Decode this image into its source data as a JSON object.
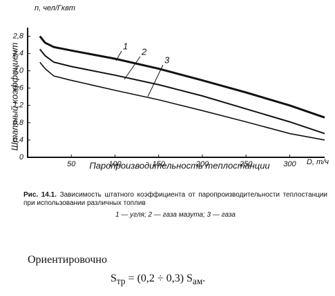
{
  "chart_data": {
    "type": "line",
    "y_label": "Штатный коэффициент",
    "y_unit": "n, чел/Гквт",
    "x_label": "Паропроизводительность теплостанции",
    "x_unit": "D, т/ч",
    "x": [
      14,
      20,
      30,
      50,
      100,
      150,
      200,
      250,
      300,
      340
    ],
    "series": [
      {
        "name": "1",
        "color": "#111111",
        "values": [
          2.8,
          2.65,
          2.55,
          2.47,
          2.28,
          2.05,
          1.78,
          1.5,
          1.2,
          0.92
        ]
      },
      {
        "name": "2",
        "color": "#111111",
        "values": [
          2.5,
          2.35,
          2.2,
          2.1,
          1.9,
          1.68,
          1.42,
          1.12,
          0.82,
          0.55
        ]
      },
      {
        "name": "3",
        "color": "#111111",
        "values": [
          2.2,
          2.05,
          1.88,
          1.78,
          1.55,
          1.33,
          1.08,
          0.82,
          0.55,
          0.4
        ]
      }
    ],
    "xlim": [
      0,
      340
    ],
    "ylim": [
      0,
      3
    ],
    "xticks": [
      50,
      100,
      150,
      200,
      250,
      300
    ],
    "yticks": [
      0,
      {
        "value": 0.4,
        "label": "0,4"
      },
      {
        "value": 0.8,
        "label": "0,8"
      },
      {
        "value": 1.2,
        "label": "1,2"
      },
      {
        "value": 1.6,
        "label": "1,6"
      },
      {
        "value": 2.0,
        "label": "2,0"
      },
      {
        "value": 2.4,
        "label": "2,4"
      },
      {
        "value": 2.8,
        "label": "2,8"
      }
    ],
    "grid": false
  },
  "caption": {
    "number": "Рис. 14.1.",
    "title": "Зависимость штатного коэффициента от паропроизводительности теплостанции при использовании различных топлив",
    "legend": "1 — угля; 2 — газа мазута; 3 — газа"
  },
  "text": {
    "paragraph": "Ориентировочно",
    "formula": {
      "lhs": "S",
      "lhs_sub": "тр",
      "rhs": "= (0,2 ÷ 0,3) S",
      "rhs_sub": "ам",
      "end": "."
    }
  }
}
